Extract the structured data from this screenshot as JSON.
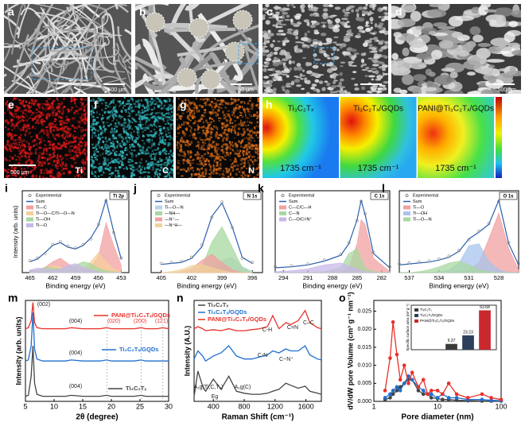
{
  "images": [
    {
      "letter": "a",
      "scale": "500 μm"
    },
    {
      "letter": "b",
      "scale": "50 μm"
    },
    {
      "letter": "c",
      "scale": "5 μm"
    },
    {
      "letter": "d",
      "scale": "500 nm"
    }
  ],
  "maps": [
    {
      "letter": "e",
      "scale": "500 μm",
      "element": "Ti"
    },
    {
      "letter": "f",
      "element": "C"
    },
    {
      "letter": "g",
      "element": "N"
    }
  ],
  "heatmaps": {
    "letter": "h",
    "panels": [
      {
        "title": "Ti₃C₂Tₓ",
        "label": "1735 cm⁻¹"
      },
      {
        "title": "Ti₃C₂Tₓ/GQDs",
        "label": "1735 cm⁻¹"
      },
      {
        "title": "PANI@Ti₃C₂Tₓ/GQDs",
        "label": "1735 cm⁻¹"
      }
    ]
  },
  "chart_data": [
    {
      "type": "line",
      "letter": "i",
      "badge": "Ti 2p",
      "xlabel": "Binding energy (eV)",
      "ylabel": "Intensity (arb. units)",
      "legend": "top-left",
      "xlim": [
        466,
        452
      ],
      "xticks": [
        465,
        462,
        459,
        456,
        453
      ],
      "ylim": [
        0,
        90
      ],
      "x": [
        465,
        464,
        463,
        462,
        461,
        460,
        459,
        458,
        457,
        456,
        455,
        454,
        453
      ],
      "series": [
        {
          "name": "Experimental",
          "color": "#888888",
          "marker": "circle",
          "line": false,
          "values": [
            13,
            16,
            21,
            31,
            34,
            29,
            27,
            31,
            37,
            53,
            79,
            44,
            16
          ]
        },
        {
          "name": "Sum",
          "color": "#2b5fb0",
          "values": [
            12,
            15,
            22,
            30,
            33,
            28,
            26,
            30,
            38,
            52,
            80,
            45,
            15
          ]
        },
        {
          "name": "Ti—C",
          "color": "#f2a0a0",
          "fill": true,
          "values": [
            2,
            3,
            6,
            12,
            16,
            10,
            5,
            4,
            6,
            18,
            55,
            30,
            8
          ]
        },
        {
          "name": "Ti—O—C/Ti—O—N",
          "color": "#f5cf9b",
          "fill": true,
          "values": [
            1,
            2,
            4,
            8,
            6,
            4,
            3,
            5,
            12,
            22,
            12,
            4,
            1
          ]
        },
        {
          "name": "Ti—OH",
          "color": "#a8d8a0",
          "fill": true,
          "values": [
            1,
            3,
            6,
            5,
            4,
            5,
            8,
            12,
            10,
            5,
            2,
            1,
            0
          ]
        },
        {
          "name": "Ti—O",
          "color": "#c8b8e8",
          "fill": true,
          "values": [
            3,
            5,
            4,
            3,
            4,
            8,
            10,
            6,
            3,
            1,
            0,
            0,
            0
          ]
        }
      ]
    },
    {
      "type": "line",
      "letter": "j",
      "badge": "N 1s",
      "xlabel": "Binding energy (eV)",
      "legend": "top-left",
      "xlim": [
        406,
        395
      ],
      "xticks": [
        405,
        402,
        399,
        396
      ],
      "ylim": [
        0,
        80
      ],
      "x": [
        405,
        404,
        403,
        402,
        401,
        400,
        399,
        398,
        397,
        396
      ],
      "series": [
        {
          "name": "Experimental",
          "color": "#888888",
          "marker": "circle",
          "line": false,
          "values": [
            9,
            10,
            11,
            15,
            27,
            54,
            69,
            44,
            14,
            10
          ]
        },
        {
          "name": "Sum",
          "color": "#2b5fb0",
          "values": [
            8,
            9,
            10,
            14,
            25,
            55,
            68,
            45,
            15,
            9
          ]
        },
        {
          "name": "Ti—O—N",
          "color": "#b9d3ea",
          "fill": true,
          "values": [
            0,
            0,
            0,
            0,
            1,
            4,
            12,
            15,
            6,
            1
          ]
        },
        {
          "name": "—NH—",
          "color": "#a8d8a0",
          "fill": true,
          "values": [
            0,
            0,
            0,
            1,
            5,
            30,
            45,
            25,
            5,
            0
          ]
        },
        {
          "name": "—N⁺—",
          "color": "#f2a0a0",
          "fill": true,
          "values": [
            0,
            0,
            1,
            4,
            12,
            18,
            10,
            3,
            0,
            0
          ]
        },
        {
          "name": "—N⁺H—",
          "color": "#f0d29a",
          "fill": true,
          "values": [
            0,
            1,
            3,
            7,
            8,
            5,
            2,
            0,
            0,
            0
          ]
        }
      ]
    },
    {
      "type": "line",
      "letter": "k",
      "badge": "C 1s",
      "xlabel": "Binding energy (eV)",
      "legend": "top-left",
      "xlim": [
        295,
        281
      ],
      "xticks": [
        294,
        291,
        288,
        285,
        282
      ],
      "ylim": [
        0,
        85
      ],
      "x": [
        295,
        293,
        291,
        289,
        287,
        286,
        285,
        284.5,
        284,
        283,
        281
      ],
      "series": [
        {
          "name": "Experimental",
          "color": "#888888",
          "marker": "circle",
          "line": false,
          "values": [
            6,
            7,
            9,
            13,
            19,
            31,
            54,
            74,
            61,
            21,
            6
          ]
        },
        {
          "name": "Sum",
          "color": "#2b5fb0",
          "values": [
            5,
            6,
            8,
            12,
            18,
            30,
            55,
            75,
            60,
            20,
            5
          ]
        },
        {
          "name": "C—C/C—H",
          "color": "#f2a0a0",
          "fill": true,
          "values": [
            0,
            0,
            0,
            0,
            1,
            5,
            30,
            55,
            50,
            15,
            1
          ]
        },
        {
          "name": "C—N",
          "color": "#a8d8a0",
          "fill": true,
          "values": [
            0,
            0,
            0,
            1,
            5,
            20,
            25,
            15,
            5,
            1,
            0
          ]
        },
        {
          "name": "C—O/C=N⁺",
          "color": "#c8b8e8",
          "fill": true,
          "values": [
            1,
            2,
            4,
            8,
            10,
            7,
            4,
            2,
            1,
            0,
            0
          ]
        }
      ]
    },
    {
      "type": "line",
      "letter": "l",
      "badge": "O 1s",
      "xlabel": "Binding energy (eV)",
      "legend": "top-left",
      "xlim": [
        538,
        526
      ],
      "xticks": [
        537,
        534,
        531,
        528
      ],
      "ylim": [
        0,
        85
      ],
      "x": [
        538,
        537,
        536,
        535,
        534,
        533,
        532,
        531,
        530,
        529,
        528,
        527,
        526
      ],
      "series": [
        {
          "name": "Experimental",
          "color": "#888888",
          "marker": "circle",
          "line": false,
          "values": [
            9,
            10,
            11,
            12,
            14,
            17,
            23,
            34,
            43,
            51,
            74,
            31,
            9
          ]
        },
        {
          "name": "Sum",
          "color": "#2b5fb0",
          "values": [
            8,
            9,
            10,
            11,
            13,
            16,
            22,
            35,
            42,
            50,
            75,
            30,
            8
          ]
        },
        {
          "name": "Ti—O",
          "color": "#f2a0a0",
          "fill": true,
          "values": [
            0,
            0,
            0,
            0,
            0,
            0,
            1,
            3,
            10,
            35,
            62,
            25,
            3
          ]
        },
        {
          "name": "Ti—OH",
          "color": "#a8c4ec",
          "fill": true,
          "values": [
            0,
            0,
            0,
            0,
            1,
            3,
            10,
            28,
            30,
            12,
            3,
            0,
            0
          ]
        },
        {
          "name": "Ti—O—N",
          "color": "#a8d8a0",
          "fill": true,
          "values": [
            0,
            0,
            1,
            3,
            6,
            10,
            12,
            8,
            3,
            1,
            0,
            0,
            0
          ]
        }
      ]
    },
    {
      "type": "line",
      "letter": "m",
      "xlabel": "2θ (degree)",
      "ylabel": "Intensity (arb. units)",
      "legend": "inline",
      "xlim": [
        5,
        30
      ],
      "xticks": [
        5,
        10,
        15,
        20,
        25,
        30
      ],
      "ylim": [
        0,
        100
      ],
      "annotations": [
        "(002)",
        "(004)",
        "(020)",
        "(200)",
        "(121)",
        "(004)",
        "(004)"
      ],
      "x": [
        5,
        5.5,
        6,
        6.3,
        6.6,
        7,
        8,
        10,
        12,
        13,
        15,
        18,
        19.2,
        20,
        22,
        24,
        25.2,
        26,
        28,
        29,
        30
      ],
      "series": [
        {
          "name": "PANI@Ti₃C₂Tₓ/GQDs",
          "color": "#e8312a",
          "values": [
            72,
            73,
            80,
            98,
            78,
            73,
            72,
            72,
            72,
            73,
            72,
            72,
            73,
            72,
            72,
            72,
            73,
            72,
            72,
            73,
            72
          ]
        },
        {
          "name": "Ti₃C₂Tₓ/GQDs",
          "color": "#1f6fd1",
          "values": [
            40,
            41,
            55,
            88,
            52,
            42,
            40,
            40,
            40,
            41,
            40,
            40,
            41,
            40,
            40,
            40,
            41,
            40,
            40,
            40,
            40
          ]
        },
        {
          "name": "Ti₃C₂Tₓ",
          "color": "#444444",
          "values": [
            5,
            6,
            25,
            55,
            18,
            7,
            5,
            5,
            5,
            6,
            5,
            5,
            6,
            5,
            5,
            5,
            6,
            5,
            5,
            5,
            5
          ]
        }
      ]
    },
    {
      "type": "line",
      "letter": "n",
      "xlabel": "Raman Shift (cm⁻¹)",
      "ylabel": "Intensity (A.U.)",
      "legend": "top-left",
      "xlim": [
        150,
        1800
      ],
      "xticks": [
        400,
        800,
        1200,
        1600
      ],
      "ylim": [
        0,
        100
      ],
      "annotations": [
        "C-H",
        "C=N",
        "C–C",
        "C-N",
        "C~N⁺",
        "A₁g(Ti,C,Tₓ)",
        "Eg",
        "A₁g(C)"
      ],
      "x": [
        150,
        200,
        260,
        300,
        400,
        500,
        600,
        700,
        800,
        900,
        1000,
        1100,
        1170,
        1250,
        1340,
        1400,
        1500,
        1590,
        1650,
        1750,
        1800
      ],
      "series": [
        {
          "name": "Ti₃C₂Tₓ",
          "color": "#444444",
          "values": [
            5,
            30,
            15,
            10,
            22,
            12,
            25,
            10,
            8,
            7,
            7,
            8,
            10,
            12,
            18,
            16,
            13,
            15,
            10,
            8,
            7
          ]
        },
        {
          "name": "Ti₃C₂Tₓ/GQDs",
          "color": "#1f6fd1",
          "values": [
            42,
            50,
            45,
            40,
            45,
            48,
            55,
            45,
            42,
            42,
            44,
            46,
            50,
            48,
            52,
            50,
            50,
            55,
            46,
            42,
            41
          ]
        },
        {
          "name": "PANI@Ti₃C₂Tₓ/GQDs",
          "color": "#e8312a",
          "values": [
            72,
            74,
            72,
            70,
            71,
            70,
            72,
            70,
            70,
            71,
            72,
            74,
            85,
            72,
            78,
            76,
            80,
            90,
            78,
            73,
            72
          ]
        }
      ]
    },
    {
      "type": "line",
      "letter": "o",
      "xlabel": "Pore diameter (nm)",
      "ylabel": "dV/dW pore Volume (cm³ g⁻¹ nm⁻¹)",
      "xlog": true,
      "xlim": [
        1,
        100
      ],
      "xticks": [
        1,
        10,
        100
      ],
      "ylim": [
        0,
        0.028
      ],
      "yticks": [
        {
          "value": 0,
          "label": "0.000"
        },
        {
          "value": 0.005,
          "label": "0.005"
        },
        {
          "value": 0.01,
          "label": "0.010"
        },
        {
          "value": 0.015,
          "label": "0.015"
        },
        {
          "value": 0.02,
          "label": "0.020"
        },
        {
          "value": 0.025,
          "label": "0.025"
        }
      ],
      "x": [
        1.5,
        1.8,
        2,
        2.3,
        2.6,
        3,
        3.5,
        4,
        5,
        6,
        7,
        8,
        10,
        12,
        15,
        20,
        30,
        50,
        70,
        100
      ],
      "series": [
        {
          "name": "Ti₃C₂Tₓ",
          "color": "#444444",
          "marker": "circle",
          "values": [
            0.0005,
            0.001,
            0.002,
            0.003,
            0.004,
            0.005,
            0.006,
            0.006,
            0.003,
            0.002,
            0.002,
            0.001,
            0.0008,
            0.0005,
            0.0005,
            0.0003,
            0.0002,
            0.0001,
            0.0001,
            0.0001
          ]
        },
        {
          "name": "Ti₃C₂Tₓ/GQDs",
          "color": "#1f6fd1",
          "marker": "circle",
          "values": [
            0.001,
            0.002,
            0.003,
            0.004,
            0.003,
            0.005,
            0.007,
            0.006,
            0.004,
            0.003,
            0.002,
            0.002,
            0.001,
            0.002,
            0.001,
            0.001,
            0.0005,
            0.0005,
            0.0003,
            0.0002
          ]
        },
        {
          "name": "PANI@Ti₃C₂Tₓ/GQDs",
          "color": "#e8312a",
          "marker": "circle",
          "values": [
            0.003,
            0.012,
            0.022,
            0.013,
            0.006,
            0.01,
            0.005,
            0.008,
            0.004,
            0.006,
            0.002,
            0.003,
            0.003,
            0.002,
            0.005,
            0.002,
            0.001,
            0.002,
            0.001,
            0.0005
          ]
        }
      ]
    },
    {
      "type": "bar",
      "ylabel": "Specific surface area (m² g⁻¹)",
      "legend": "top-left",
      "ylim": [
        0,
        72
      ],
      "categories": [
        "Ti₃C₂Tₓ",
        "Ti₃C₂Tₓ/GQDs",
        "PANI@Ti₃C₂Tₓ/GQDs"
      ],
      "colors": [
        "#3a3a3a",
        "#2c3e5c",
        "#c8282e"
      ],
      "values": [
        9.37,
        23.23,
        63.68
      ]
    }
  ]
}
